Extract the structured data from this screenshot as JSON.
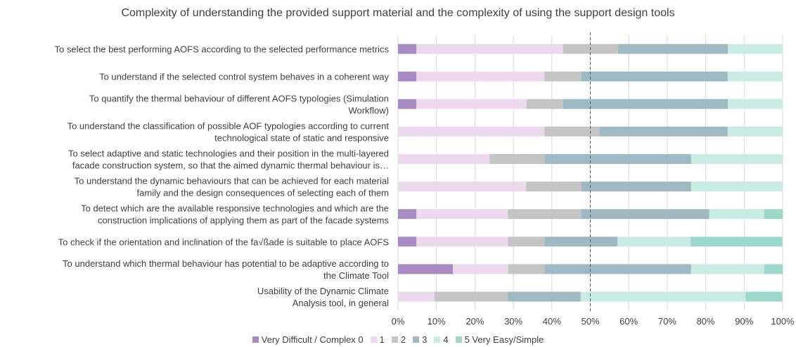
{
  "chart_data": {
    "type": "bar",
    "orientation": "horizontal",
    "stacked": true,
    "percent": true,
    "title": "Complexity of understanding the provided support material and the complexity of using the support design tools",
    "categories": [
      "To select the best performing AOFS according to the selected performance metrics",
      "To understand if the selected control system behaves in a coherent way",
      "To quantify the thermal behaviour of different AOFS typologies (Simulation Workflow)",
      "To understand the classification of possible AOF typologies according to current technological state of static and responsive",
      "To select adaptive and static technologies and their position in the multi-layered facade construction system, so that the aimed dynamic thermal behaviour is…",
      "To understand the dynamic behaviours that can be achieved for each material family and the design consequences of selecting each of them",
      "To detect which are the available responsive technologies and which are the construction implications of applying them as part of the facade systems",
      "To check if the orientation and inclination of the fa√ßade  is suitable to place AOFS",
      "To understand which thermal behaviour has potential to be adaptive according to the Climate Tool",
      "Usability of the Dynamic Climate Analysis tool, in general"
    ],
    "category_lines": [
      [
        "To select the best performing AOFS according to the selected performance metrics"
      ],
      [
        "To understand if the selected control system behaves in a coherent way"
      ],
      [
        "To quantify the thermal behaviour of different AOFS typologies (Simulation",
        "Workflow)"
      ],
      [
        "To understand the classification of possible AOF typologies according to current",
        "technological state of static and responsive"
      ],
      [
        "To select adaptive and static technologies and their position in the multi-layered",
        "facade construction system, so that the aimed dynamic thermal behaviour is…"
      ],
      [
        "To understand the dynamic behaviours that can be achieved for each material",
        "family and the design consequences of selecting each of them"
      ],
      [
        "To detect which are the available responsive technologies and which are the",
        "construction implications of applying them as part of the facade systems"
      ],
      [
        "To check if the orientation and inclination of the fa√ßade  is suitable to place AOFS"
      ],
      [
        "To understand which thermal behaviour has potential to be adaptive according to",
        "the Climate Tool"
      ],
      [
        "Usability of the Dynamic Climate",
        "Analysis tool, in general"
      ]
    ],
    "series": [
      {
        "name": "Very Difficult / Complex 0",
        "color": "#a98bc4",
        "values": [
          4.8,
          4.8,
          4.8,
          0,
          0,
          0,
          4.8,
          4.8,
          14.3,
          0
        ]
      },
      {
        "name": "1",
        "color": "#ecd9ee",
        "values": [
          38.1,
          33.3,
          28.6,
          38.1,
          23.8,
          33.3,
          23.8,
          23.8,
          14.3,
          9.5
        ]
      },
      {
        "name": "2",
        "color": "#c4c4c4",
        "values": [
          14.3,
          9.5,
          9.5,
          14.3,
          14.3,
          14.3,
          19.0,
          9.5,
          9.5,
          19.0
        ]
      },
      {
        "name": "3",
        "color": "#9fb9c2",
        "values": [
          28.6,
          38.1,
          42.9,
          33.3,
          38.1,
          28.6,
          33.3,
          19.0,
          38.1,
          19.0
        ]
      },
      {
        "name": "4",
        "color": "#c8ece3",
        "values": [
          14.3,
          14.3,
          14.3,
          14.3,
          23.8,
          23.8,
          14.3,
          19.0,
          19.0,
          42.9
        ]
      },
      {
        "name": "5 Very Easy/Simple",
        "color": "#9bd8cb",
        "values": [
          0,
          0,
          0,
          0,
          0,
          0,
          4.8,
          23.8,
          4.8,
          9.5
        ]
      }
    ],
    "xlim": [
      0,
      100
    ],
    "xticks": [
      "0%",
      "10%",
      "20%",
      "30%",
      "40%",
      "50%",
      "60%",
      "70%",
      "80%",
      "90%",
      "100%"
    ],
    "reference_line": 50,
    "grid": true,
    "legend_position": "bottom"
  }
}
